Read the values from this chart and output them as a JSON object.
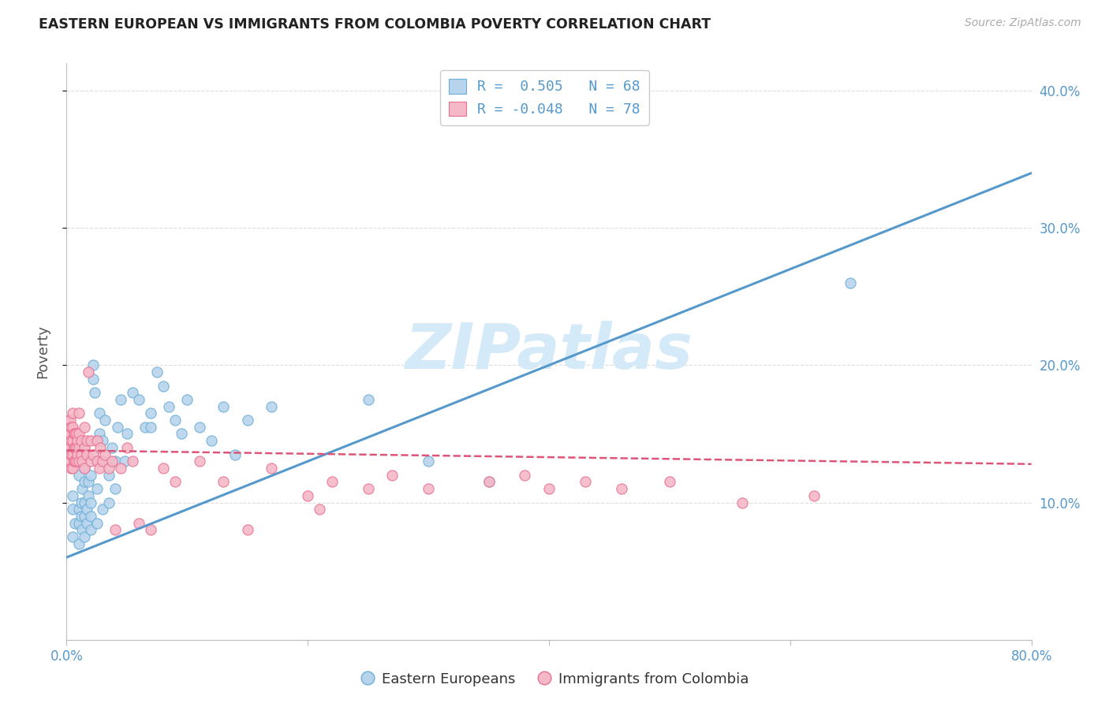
{
  "title": "EASTERN EUROPEAN VS IMMIGRANTS FROM COLOMBIA POVERTY CORRELATION CHART",
  "source": "Source: ZipAtlas.com",
  "ylabel": "Poverty",
  "watermark": "ZIPatlas",
  "legend_label1": "Eastern Europeans",
  "legend_label2": "Immigrants from Colombia",
  "blue_color": "#b8d4ed",
  "pink_color": "#f5b8c8",
  "blue_edge_color": "#6aaed6",
  "pink_edge_color": "#e87090",
  "blue_line_color": "#5599cc",
  "pink_line_color": "#dd5577",
  "title_color": "#222222",
  "source_color": "#aaaaaa",
  "ytick_color": "#5599cc",
  "xtick_color": "#5599cc",
  "grid_color": "#dddddd",
  "ylabel_color": "#555555",
  "watermark_color": "#d5eaf8",
  "blue_scatter": [
    [
      0.005,
      0.075
    ],
    [
      0.005,
      0.095
    ],
    [
      0.005,
      0.105
    ],
    [
      0.007,
      0.085
    ],
    [
      0.01,
      0.07
    ],
    [
      0.01,
      0.085
    ],
    [
      0.01,
      0.095
    ],
    [
      0.01,
      0.12
    ],
    [
      0.01,
      0.13
    ],
    [
      0.012,
      0.09
    ],
    [
      0.012,
      0.1
    ],
    [
      0.013,
      0.08
    ],
    [
      0.013,
      0.11
    ],
    [
      0.015,
      0.075
    ],
    [
      0.015,
      0.09
    ],
    [
      0.015,
      0.1
    ],
    [
      0.015,
      0.115
    ],
    [
      0.015,
      0.125
    ],
    [
      0.017,
      0.085
    ],
    [
      0.017,
      0.095
    ],
    [
      0.018,
      0.105
    ],
    [
      0.018,
      0.115
    ],
    [
      0.02,
      0.08
    ],
    [
      0.02,
      0.09
    ],
    [
      0.02,
      0.1
    ],
    [
      0.02,
      0.12
    ],
    [
      0.022,
      0.19
    ],
    [
      0.022,
      0.2
    ],
    [
      0.023,
      0.18
    ],
    [
      0.025,
      0.085
    ],
    [
      0.025,
      0.11
    ],
    [
      0.025,
      0.13
    ],
    [
      0.027,
      0.15
    ],
    [
      0.027,
      0.165
    ],
    [
      0.03,
      0.095
    ],
    [
      0.03,
      0.13
    ],
    [
      0.03,
      0.145
    ],
    [
      0.032,
      0.16
    ],
    [
      0.035,
      0.1
    ],
    [
      0.035,
      0.12
    ],
    [
      0.038,
      0.14
    ],
    [
      0.04,
      0.11
    ],
    [
      0.04,
      0.13
    ],
    [
      0.042,
      0.155
    ],
    [
      0.045,
      0.175
    ],
    [
      0.048,
      0.13
    ],
    [
      0.05,
      0.15
    ],
    [
      0.055,
      0.18
    ],
    [
      0.06,
      0.175
    ],
    [
      0.065,
      0.155
    ],
    [
      0.07,
      0.165
    ],
    [
      0.07,
      0.155
    ],
    [
      0.075,
      0.195
    ],
    [
      0.08,
      0.185
    ],
    [
      0.085,
      0.17
    ],
    [
      0.09,
      0.16
    ],
    [
      0.095,
      0.15
    ],
    [
      0.1,
      0.175
    ],
    [
      0.11,
      0.155
    ],
    [
      0.12,
      0.145
    ],
    [
      0.13,
      0.17
    ],
    [
      0.14,
      0.135
    ],
    [
      0.15,
      0.16
    ],
    [
      0.17,
      0.17
    ],
    [
      0.25,
      0.175
    ],
    [
      0.3,
      0.13
    ],
    [
      0.35,
      0.115
    ],
    [
      0.65,
      0.26
    ]
  ],
  "pink_scatter": [
    [
      0.002,
      0.13
    ],
    [
      0.002,
      0.14
    ],
    [
      0.002,
      0.15
    ],
    [
      0.002,
      0.16
    ],
    [
      0.003,
      0.13
    ],
    [
      0.003,
      0.14
    ],
    [
      0.003,
      0.15
    ],
    [
      0.003,
      0.16
    ],
    [
      0.004,
      0.125
    ],
    [
      0.004,
      0.135
    ],
    [
      0.004,
      0.145
    ],
    [
      0.004,
      0.155
    ],
    [
      0.005,
      0.125
    ],
    [
      0.005,
      0.135
    ],
    [
      0.005,
      0.145
    ],
    [
      0.005,
      0.155
    ],
    [
      0.005,
      0.165
    ],
    [
      0.006,
      0.13
    ],
    [
      0.006,
      0.14
    ],
    [
      0.006,
      0.15
    ],
    [
      0.007,
      0.13
    ],
    [
      0.007,
      0.14
    ],
    [
      0.007,
      0.15
    ],
    [
      0.008,
      0.13
    ],
    [
      0.008,
      0.14
    ],
    [
      0.008,
      0.15
    ],
    [
      0.009,
      0.135
    ],
    [
      0.009,
      0.145
    ],
    [
      0.01,
      0.13
    ],
    [
      0.01,
      0.14
    ],
    [
      0.01,
      0.15
    ],
    [
      0.01,
      0.165
    ],
    [
      0.012,
      0.135
    ],
    [
      0.012,
      0.145
    ],
    [
      0.013,
      0.13
    ],
    [
      0.015,
      0.125
    ],
    [
      0.015,
      0.14
    ],
    [
      0.015,
      0.155
    ],
    [
      0.017,
      0.135
    ],
    [
      0.017,
      0.145
    ],
    [
      0.018,
      0.195
    ],
    [
      0.02,
      0.13
    ],
    [
      0.02,
      0.145
    ],
    [
      0.022,
      0.135
    ],
    [
      0.025,
      0.13
    ],
    [
      0.025,
      0.145
    ],
    [
      0.027,
      0.125
    ],
    [
      0.028,
      0.14
    ],
    [
      0.03,
      0.13
    ],
    [
      0.032,
      0.135
    ],
    [
      0.035,
      0.125
    ],
    [
      0.038,
      0.13
    ],
    [
      0.04,
      0.08
    ],
    [
      0.045,
      0.125
    ],
    [
      0.05,
      0.14
    ],
    [
      0.055,
      0.13
    ],
    [
      0.06,
      0.085
    ],
    [
      0.07,
      0.08
    ],
    [
      0.08,
      0.125
    ],
    [
      0.09,
      0.115
    ],
    [
      0.11,
      0.13
    ],
    [
      0.13,
      0.115
    ],
    [
      0.15,
      0.08
    ],
    [
      0.17,
      0.125
    ],
    [
      0.2,
      0.105
    ],
    [
      0.21,
      0.095
    ],
    [
      0.22,
      0.115
    ],
    [
      0.25,
      0.11
    ],
    [
      0.27,
      0.12
    ],
    [
      0.3,
      0.11
    ],
    [
      0.35,
      0.115
    ],
    [
      0.38,
      0.12
    ],
    [
      0.4,
      0.11
    ],
    [
      0.43,
      0.115
    ],
    [
      0.46,
      0.11
    ],
    [
      0.5,
      0.115
    ],
    [
      0.56,
      0.1
    ],
    [
      0.62,
      0.105
    ]
  ],
  "blue_line_x": [
    0.0,
    0.8
  ],
  "blue_line_y": [
    0.06,
    0.34
  ],
  "pink_line_x": [
    0.0,
    0.8
  ],
  "pink_line_y": [
    0.138,
    0.128
  ],
  "xlim": [
    0.0,
    0.8
  ],
  "ylim": [
    0.0,
    0.42
  ],
  "xticks": [
    0.0,
    0.2,
    0.4,
    0.6,
    0.8
  ],
  "xtick_labels_visible": [
    "0.0%",
    "",
    "",
    "",
    "80.0%"
  ],
  "yticks": [
    0.1,
    0.2,
    0.3,
    0.4
  ],
  "ytick_labels": [
    "10.0%",
    "20.0%",
    "30.0%",
    "40.0%"
  ],
  "legend_r1_text": "R =  0.505   N = 68",
  "legend_r2_text": "R = -0.048   N = 78"
}
